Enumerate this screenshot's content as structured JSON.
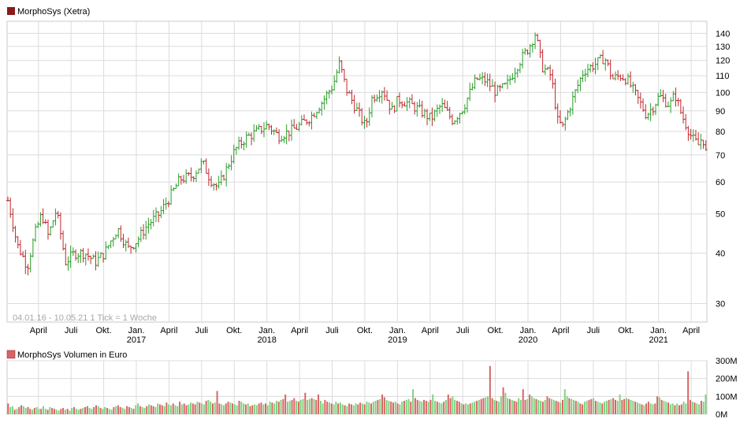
{
  "chart_data": [
    {
      "type": "ohlc",
      "title": "MorphoSys (Xetra)",
      "note": "04.01.16 - 10.05.21   1 Tick = 1 Woche",
      "colors": {
        "up": "#2a9d2a",
        "down": "#c1272d",
        "grid": "#dcdcdc",
        "legend_square": "#8b1a1a"
      },
      "y_scale": "log",
      "ylim": [
        27,
        150
      ],
      "y_ticks": [
        "30",
        "40",
        "50",
        "60",
        "70",
        "80",
        "90",
        "100",
        "110",
        "120",
        "130",
        "140"
      ],
      "x_ticks": [
        {
          "label": "April",
          "year": ""
        },
        {
          "label": "Juli",
          "year": ""
        },
        {
          "label": "Okt.",
          "year": ""
        },
        {
          "label": "Jan.",
          "year": "2017"
        },
        {
          "label": "April",
          "year": ""
        },
        {
          "label": "Juli",
          "year": ""
        },
        {
          "label": "Okt.",
          "year": ""
        },
        {
          "label": "Jan.",
          "year": "2018"
        },
        {
          "label": "April",
          "year": ""
        },
        {
          "label": "Juli",
          "year": ""
        },
        {
          "label": "Okt.",
          "year": ""
        },
        {
          "label": "Jan.",
          "year": "2019"
        },
        {
          "label": "April",
          "year": ""
        },
        {
          "label": "Juli",
          "year": ""
        },
        {
          "label": "Okt.",
          "year": ""
        },
        {
          "label": "Jan.",
          "year": "2020"
        },
        {
          "label": "April",
          "year": ""
        },
        {
          "label": "Juli",
          "year": ""
        },
        {
          "label": "Okt.",
          "year": ""
        },
        {
          "label": "Jan.",
          "year": "2021"
        },
        {
          "label": "April",
          "year": ""
        }
      ],
      "weekly_close_path": [
        [
          2016.01,
          54
        ],
        [
          2016.08,
          42
        ],
        [
          2016.16,
          37
        ],
        [
          2016.22,
          45
        ],
        [
          2016.27,
          50
        ],
        [
          2016.32,
          44
        ],
        [
          2016.38,
          51
        ],
        [
          2016.45,
          38
        ],
        [
          2016.52,
          40
        ],
        [
          2016.6,
          40
        ],
        [
          2016.68,
          38
        ],
        [
          2016.75,
          40
        ],
        [
          2016.85,
          46
        ],
        [
          2016.93,
          41
        ],
        [
          2017.0,
          43
        ],
        [
          2017.08,
          47
        ],
        [
          2017.17,
          50
        ],
        [
          2017.25,
          55
        ],
        [
          2017.33,
          61
        ],
        [
          2017.42,
          62
        ],
        [
          2017.5,
          67
        ],
        [
          2017.56,
          61
        ],
        [
          2017.62,
          58
        ],
        [
          2017.67,
          63
        ],
        [
          2017.75,
          72
        ],
        [
          2017.83,
          77
        ],
        [
          2017.92,
          80
        ],
        [
          2018.0,
          83
        ],
        [
          2018.08,
          78
        ],
        [
          2018.17,
          80
        ],
        [
          2018.25,
          83
        ],
        [
          2018.33,
          87
        ],
        [
          2018.42,
          95
        ],
        [
          2018.5,
          104
        ],
        [
          2018.55,
          118
        ],
        [
          2018.6,
          102
        ],
        [
          2018.67,
          92
        ],
        [
          2018.75,
          82
        ],
        [
          2018.8,
          97
        ],
        [
          2018.88,
          102
        ],
        [
          2018.95,
          90
        ],
        [
          2019.0,
          96
        ],
        [
          2019.08,
          94
        ],
        [
          2019.17,
          90
        ],
        [
          2019.25,
          86
        ],
        [
          2019.33,
          93
        ],
        [
          2019.42,
          85
        ],
        [
          2019.5,
          92
        ],
        [
          2019.55,
          100
        ],
        [
          2019.6,
          108
        ],
        [
          2019.67,
          107
        ],
        [
          2019.75,
          100
        ],
        [
          2019.83,
          104
        ],
        [
          2019.92,
          118
        ],
        [
          2020.0,
          129
        ],
        [
          2020.05,
          140
        ],
        [
          2020.1,
          116
        ],
        [
          2020.17,
          110
        ],
        [
          2020.22,
          85
        ],
        [
          2020.26,
          82
        ],
        [
          2020.33,
          95
        ],
        [
          2020.42,
          113
        ],
        [
          2020.5,
          117
        ],
        [
          2020.58,
          122
        ],
        [
          2020.64,
          108
        ],
        [
          2020.7,
          110
        ],
        [
          2020.75,
          108
        ],
        [
          2020.83,
          97
        ],
        [
          2020.9,
          88
        ],
        [
          2020.95,
          92
        ],
        [
          2021.0,
          98
        ],
        [
          2021.08,
          93
        ],
        [
          2021.12,
          99
        ],
        [
          2021.17,
          88
        ],
        [
          2021.25,
          77
        ],
        [
          2021.3,
          74
        ],
        [
          2021.33,
          78
        ],
        [
          2021.36,
          70
        ]
      ]
    },
    {
      "type": "bar",
      "title": "MorphoSys Volumen in Euro",
      "colors": {
        "up": "#7ed27e",
        "down": "#d86464",
        "legend_square": "#d86464"
      },
      "ylim": [
        0,
        300
      ],
      "y_ticks": [
        "0M",
        "100M",
        "200M",
        "300M"
      ],
      "values": [
        60,
        40,
        45,
        25,
        30,
        40,
        50,
        45,
        35,
        40,
        30,
        25,
        35,
        40,
        30,
        30,
        45,
        30,
        25,
        40,
        35,
        30,
        25,
        20,
        30,
        35,
        25,
        30,
        20,
        35,
        40,
        30,
        25,
        30,
        35,
        40,
        45,
        35,
        30,
        40,
        50,
        45,
        35,
        30,
        40,
        35,
        30,
        25,
        40,
        45,
        50,
        40,
        35,
        30,
        45,
        40,
        35,
        30,
        50,
        60,
        45,
        40,
        35,
        45,
        55,
        50,
        45,
        40,
        60,
        55,
        50,
        45,
        65,
        55,
        50,
        60,
        50,
        45,
        70,
        55,
        60,
        50,
        55,
        65,
        60,
        55,
        70,
        65,
        60,
        55,
        75,
        80,
        70,
        60,
        65,
        130,
        60,
        55,
        50,
        60,
        70,
        65,
        60,
        55,
        50,
        75,
        70,
        60,
        55,
        60,
        45,
        50,
        55,
        50,
        60,
        65,
        55,
        60,
        50,
        70,
        65,
        60,
        75,
        70,
        80,
        85,
        110,
        70,
        75,
        80,
        90,
        75,
        70,
        80,
        85,
        120,
        80,
        85,
        90,
        85,
        80,
        110,
        75,
        60,
        80,
        70,
        65,
        60,
        55,
        70,
        60,
        65,
        55,
        50,
        45,
        60,
        55,
        50,
        60,
        55,
        65,
        60,
        55,
        70,
        65,
        60,
        70,
        75,
        80,
        85,
        110,
        95,
        80,
        75,
        70,
        65,
        70,
        60,
        55,
        70,
        75,
        80,
        85,
        70,
        140,
        90,
        80,
        75,
        70,
        80,
        75,
        70,
        80,
        110,
        75,
        70,
        65,
        60,
        70,
        80,
        110,
        90,
        100,
        80,
        75,
        70,
        60,
        55,
        60,
        55,
        60,
        65,
        70,
        75,
        80,
        85,
        90,
        95,
        100,
        270,
        90,
        80,
        75,
        70,
        100,
        150,
        120,
        90,
        85,
        80,
        75,
        70,
        90,
        80,
        140,
        80,
        85,
        110,
        100,
        90,
        85,
        80,
        75,
        70,
        80,
        100,
        90,
        85,
        80,
        75,
        70,
        65,
        80,
        140,
        100,
        90,
        85,
        80,
        75,
        70,
        60,
        55,
        70,
        75,
        80,
        85,
        90,
        75,
        70,
        65,
        60,
        70,
        75,
        80,
        85,
        90,
        80,
        75,
        110,
        80,
        85,
        90,
        85,
        80,
        75,
        70,
        65,
        60,
        55,
        50,
        60,
        70,
        60,
        55,
        60,
        100,
        95,
        80,
        75,
        70,
        65,
        55,
        60,
        50,
        60,
        50,
        55,
        70,
        60,
        240,
        80,
        70,
        65,
        60,
        55,
        75,
        70,
        110
      ]
    }
  ]
}
